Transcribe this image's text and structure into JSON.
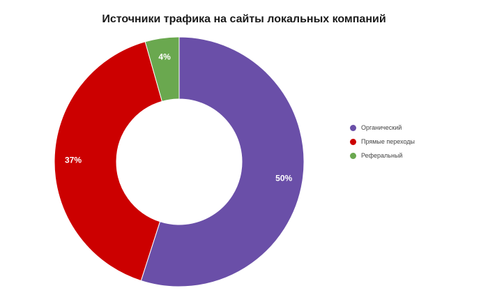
{
  "chart_data": {
    "type": "pie",
    "title": "Источники трафика на сайты локальных компаний",
    "slices": [
      {
        "name": "Органический",
        "value": 50,
        "label": "50%",
        "color": "#6a4fa8"
      },
      {
        "name": "Прямые переходы",
        "value": 37,
        "label": "37%",
        "color": "#cc0000"
      },
      {
        "name": "Реферальный",
        "value": 4,
        "label": "4%",
        "color": "#6aa84f"
      }
    ],
    "legend_position": "right"
  }
}
